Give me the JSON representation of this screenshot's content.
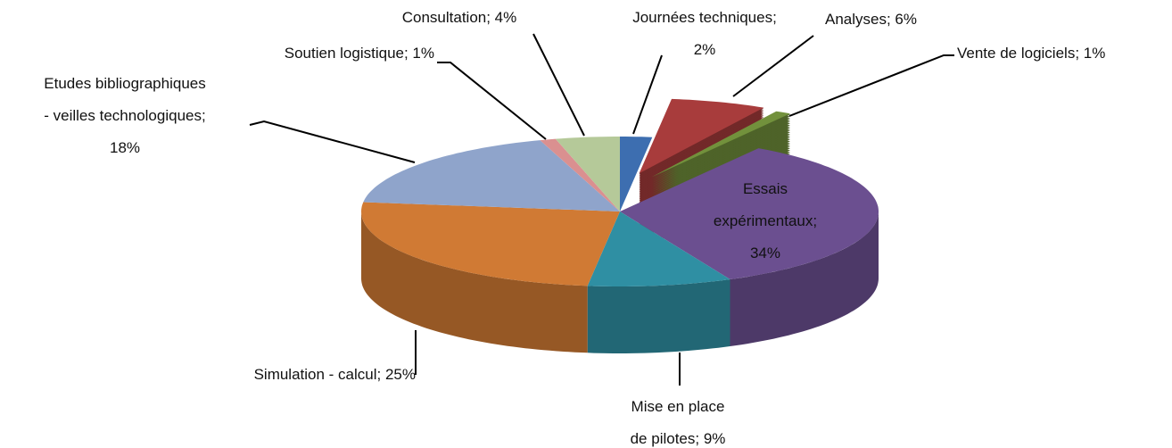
{
  "chart_data": {
    "type": "pie3d",
    "categories": [
      "Journées techniques",
      "Analyses",
      "Vente de logiciels",
      "Essais expérimentaux",
      "Mise en place de pilotes",
      "Simulation - calcul",
      "Etudes bibliographiques - veilles technologiques",
      "Soutien logistique",
      "Consultation"
    ],
    "values": [
      2,
      6,
      1,
      34,
      9,
      25,
      18,
      1,
      4
    ],
    "value_labels": [
      "Journées techniques;\n2%",
      "Analyses; 6%",
      "Vente de logiciels; 1%",
      "Essais\nexpérimentaux;\n34%",
      "Mise en place\nde pilotes; 9%",
      "Simulation  - calcul; 25%",
      "Etudes bibliographiques\n- veilles technologiques;\n18%",
      "Soutien logistique;  1%",
      "Consultation; 4%"
    ],
    "colors": [
      "#3d6eb0",
      "#a83c3c",
      "#72913c",
      "#6b4f90",
      "#2f8fa3",
      "#d07a34",
      "#8fa4cb",
      "#da9090",
      "#b5c999"
    ]
  }
}
